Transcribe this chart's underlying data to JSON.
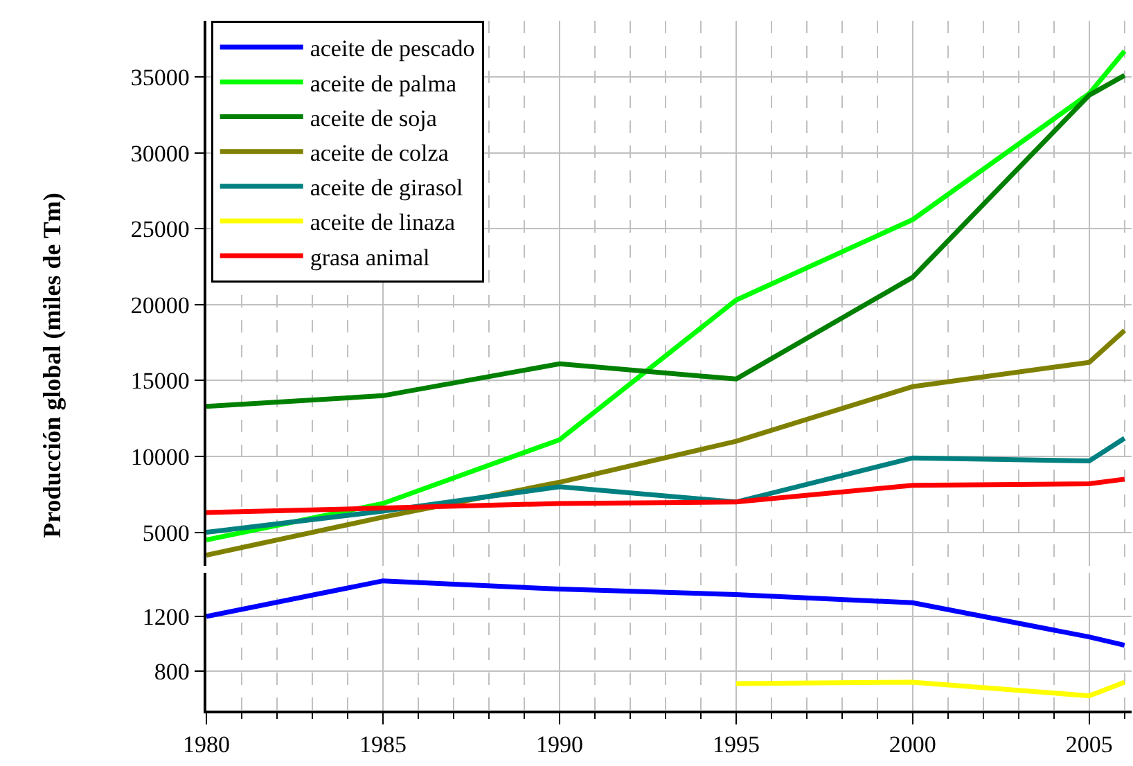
{
  "chart_data": [
    {
      "type": "line",
      "ylabel": "Producción global (miles de Tm)",
      "legend": "top left",
      "grid": true,
      "tick_labels": "y",
      "line_style": "solid",
      "marker": "none",
      "x": [
        1980,
        1985,
        1990,
        1995,
        2000,
        2005,
        2006
      ],
      "xlim": [
        1980,
        2006.2
      ],
      "ylim": [
        2800,
        38700
      ],
      "yticks": [
        5000,
        10000,
        15000,
        20000,
        25000,
        30000,
        35000
      ],
      "series": [
        {
          "name": "aceite de palma",
          "color": "#00ff00",
          "values": [
            4500,
            6900,
            11100,
            20300,
            25600,
            33900,
            36700
          ]
        },
        {
          "name": "aceite de soja",
          "color": "#008000",
          "values": [
            13300,
            14000,
            16100,
            15100,
            21800,
            33800,
            35100
          ]
        },
        {
          "name": "aceite de colza",
          "color": "#808000",
          "values": [
            3500,
            6000,
            8300,
            11000,
            14600,
            16200,
            18300
          ]
        },
        {
          "name": "aceite de girasol",
          "color": "#008080",
          "values": [
            5000,
            6400,
            8000,
            7000,
            9900,
            9700,
            11200
          ]
        },
        {
          "name": "grasa animal",
          "color": "#ff0000",
          "values": [
            6300,
            6600,
            6900,
            7000,
            8100,
            8200,
            8500
          ]
        }
      ]
    },
    {
      "type": "line",
      "grid": true,
      "legend": "top left",
      "line_style": "solid",
      "marker": "none",
      "x": [
        1980,
        1985,
        1990,
        1995,
        2000,
        2005,
        2006
      ],
      "xlim": [
        1980,
        2006.2
      ],
      "xticks": [
        1980,
        {
          "value": 1981,
          "label": null
        },
        {
          "value": 1982,
          "label": null
        },
        {
          "value": 1983,
          "label": null
        },
        {
          "value": 1984,
          "label": null
        },
        1985,
        {
          "value": 1986,
          "label": null
        },
        {
          "value": 1987,
          "label": null
        },
        {
          "value": 1988,
          "label": null
        },
        {
          "value": 1989,
          "label": null
        },
        1990,
        {
          "value": 1991,
          "label": null
        },
        {
          "value": 1992,
          "label": null
        },
        {
          "value": 1993,
          "label": null
        },
        {
          "value": 1994,
          "label": null
        },
        1995,
        {
          "value": 1996,
          "label": null
        },
        {
          "value": 1997,
          "label": null
        },
        {
          "value": 1998,
          "label": null
        },
        {
          "value": 1999,
          "label": null
        },
        2000,
        {
          "value": 2001,
          "label": null
        },
        {
          "value": 2002,
          "label": null
        },
        {
          "value": 2003,
          "label": null
        },
        {
          "value": 2004,
          "label": null
        },
        2005,
        {
          "value": 2006,
          "label": null
        }
      ],
      "ylim": [
        512,
        1520
      ],
      "yticks": [
        800,
        1200
      ],
      "series": [
        {
          "name": "aceite de pescado",
          "color": "#0000ff",
          "values": [
            1200,
            1460,
            1400,
            1360,
            1300,
            1050,
            990
          ]
        },
        {
          "name": "aceite de linaza",
          "color": "#ffff00",
          "values": [
            null,
            null,
            null,
            710,
            720,
            620,
            720
          ]
        }
      ]
    }
  ]
}
